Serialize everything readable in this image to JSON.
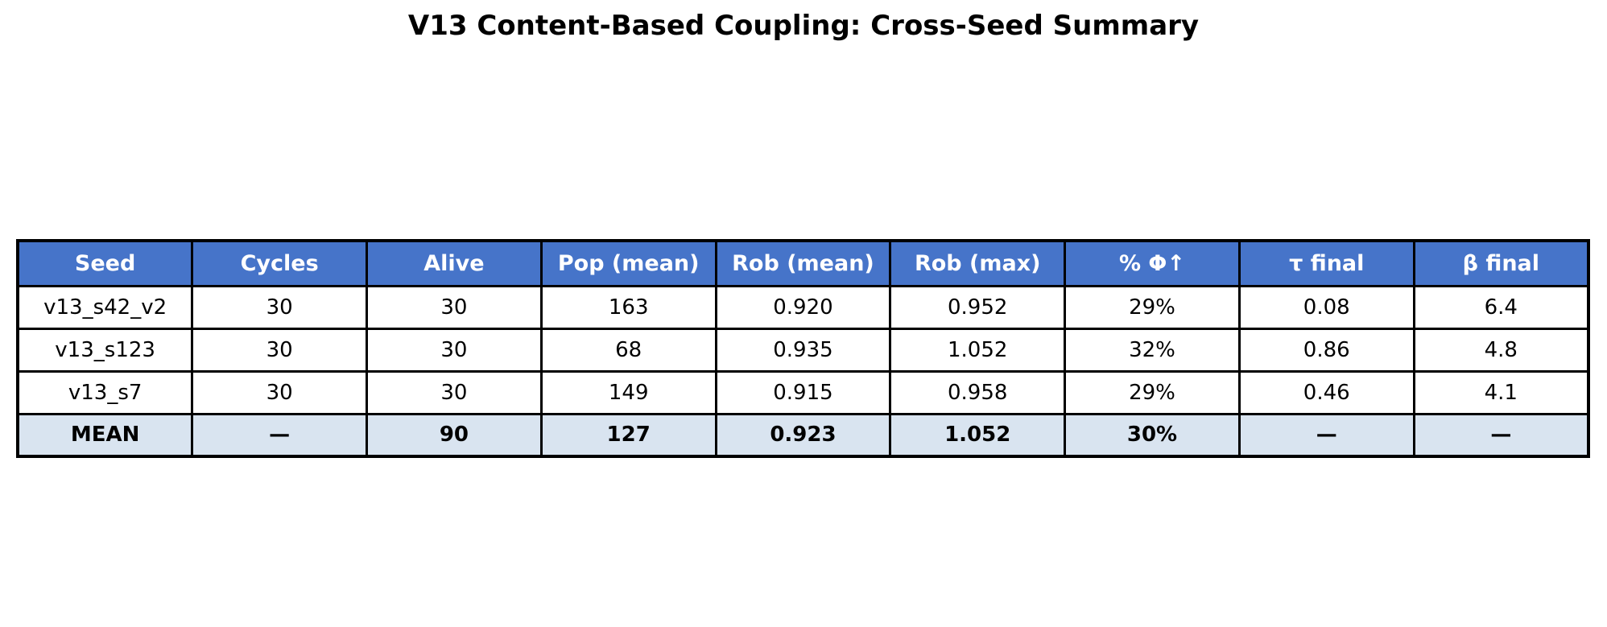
{
  "title": "V13 Content-Based Coupling: Cross-Seed Summary",
  "colors": {
    "header_bg": "#4674C9",
    "header_text": "#FFFFFF",
    "mean_row_bg": "#D9E4F0",
    "border": "#000000",
    "body_text": "#000000",
    "page_bg": "#FFFFFF"
  },
  "table": {
    "columns": [
      "Seed",
      "Cycles",
      "Alive",
      "Pop (mean)",
      "Rob (mean)",
      "Rob (max)",
      "% Φ↑",
      "τ final",
      "β final"
    ],
    "rows": [
      [
        "v13_s42_v2",
        "30",
        "30",
        "163",
        "0.920",
        "0.952",
        "29%",
        "0.08",
        "6.4"
      ],
      [
        "v13_s123",
        "30",
        "30",
        "68",
        "0.935",
        "1.052",
        "32%",
        "0.86",
        "4.8"
      ],
      [
        "v13_s7",
        "30",
        "30",
        "149",
        "0.915",
        "0.958",
        "29%",
        "0.46",
        "4.1"
      ]
    ],
    "mean_row": [
      "MEAN",
      "—",
      "90",
      "127",
      "0.923",
      "1.052",
      "30%",
      "—",
      "—"
    ]
  },
  "chart_data": {
    "type": "table",
    "title": "V13 Content-Based Coupling: Cross-Seed Summary",
    "columns": [
      "Seed",
      "Cycles",
      "Alive",
      "Pop (mean)",
      "Rob (mean)",
      "Rob (max)",
      "% Φ↑",
      "τ final",
      "β final"
    ],
    "rows": [
      {
        "seed": "v13_s42_v2",
        "cycles": 30,
        "alive": 30,
        "pop_mean": 163,
        "rob_mean": 0.92,
        "rob_max": 0.952,
        "pct_phi_up": "29%",
        "tau_final": 0.08,
        "beta_final": 6.4
      },
      {
        "seed": "v13_s123",
        "cycles": 30,
        "alive": 30,
        "pop_mean": 68,
        "rob_mean": 0.935,
        "rob_max": 1.052,
        "pct_phi_up": "32%",
        "tau_final": 0.86,
        "beta_final": 4.8
      },
      {
        "seed": "v13_s7",
        "cycles": 30,
        "alive": 30,
        "pop_mean": 149,
        "rob_mean": 0.915,
        "rob_max": 0.958,
        "pct_phi_up": "29%",
        "tau_final": 0.46,
        "beta_final": 4.1
      },
      {
        "seed": "MEAN",
        "cycles": null,
        "alive": 90,
        "pop_mean": 127,
        "rob_mean": 0.923,
        "rob_max": 1.052,
        "pct_phi_up": "30%",
        "tau_final": null,
        "beta_final": null
      }
    ],
    "layout": {
      "header_style": "blue background, white bold text",
      "mean_row_style": "light blue background, bold text",
      "grid": "black cell borders",
      "title_position": "top center"
    }
  }
}
